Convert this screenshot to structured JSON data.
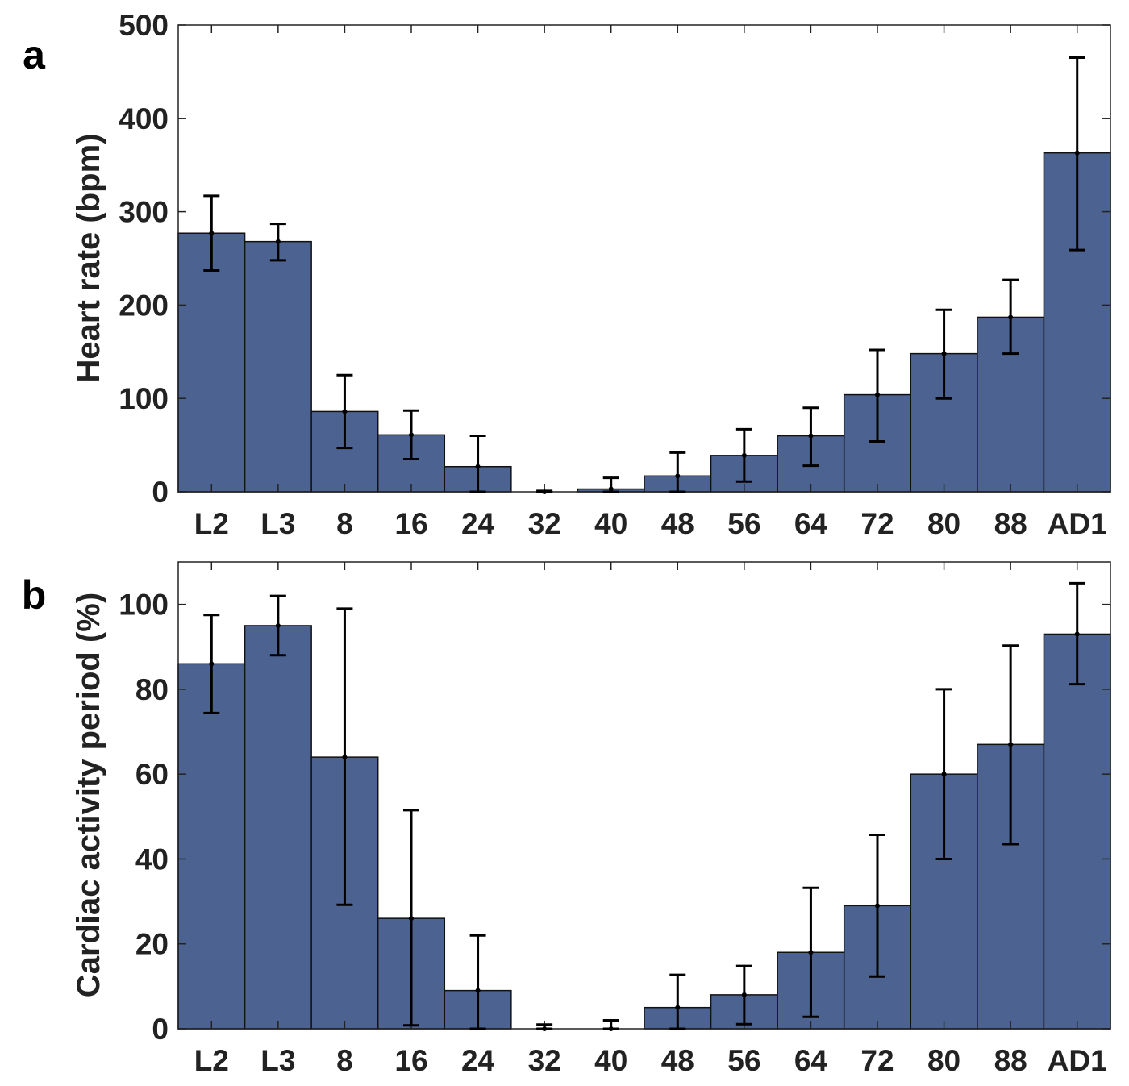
{
  "chart_data": [
    {
      "type": "bar",
      "panel_label": "a",
      "title": "",
      "xlabel": "",
      "ylabel": "Heart rate (bpm)",
      "ylim": [
        0,
        500
      ],
      "yticks": [
        0,
        100,
        200,
        300,
        400,
        500
      ],
      "grid": false,
      "categories": [
        "L2",
        "L3",
        "8",
        "16",
        "24",
        "32",
        "40",
        "48",
        "56",
        "64",
        "72",
        "80",
        "88",
        "AD1"
      ],
      "values": [
        277,
        268,
        86,
        61,
        27,
        0,
        3,
        17,
        39,
        60,
        104,
        148,
        187,
        363
      ],
      "error_upper": [
        317,
        287,
        125,
        87,
        60,
        1,
        15,
        42,
        67,
        90,
        152,
        195,
        227,
        465
      ],
      "error_lower": [
        237,
        248,
        47,
        35,
        0,
        0,
        0,
        0,
        11,
        28,
        54,
        100,
        148,
        259
      ],
      "color": "#4c6391"
    },
    {
      "type": "bar",
      "panel_label": "b",
      "title": "",
      "xlabel": "",
      "ylabel": "Cardiac activity period (%)",
      "ylim": [
        0,
        110
      ],
      "yticks": [
        0,
        20,
        40,
        60,
        80,
        100
      ],
      "grid": false,
      "categories": [
        "L2",
        "L3",
        "8",
        "16",
        "24",
        "32",
        "40",
        "48",
        "56",
        "64",
        "72",
        "80",
        "88",
        "AD1"
      ],
      "values": [
        86,
        95,
        64,
        26,
        9,
        0,
        0,
        5,
        8,
        18,
        29,
        60,
        67,
        93
      ],
      "error_upper": [
        97.5,
        102,
        99,
        51.5,
        22,
        1,
        2,
        12.7,
        14.8,
        33.2,
        45.7,
        80,
        90.3,
        105
      ],
      "error_lower": [
        74.4,
        88,
        29.2,
        0.8,
        0,
        0,
        0,
        0,
        1.1,
        2.8,
        12.3,
        40,
        43.5,
        81.2
      ],
      "color": "#4c6391"
    }
  ]
}
